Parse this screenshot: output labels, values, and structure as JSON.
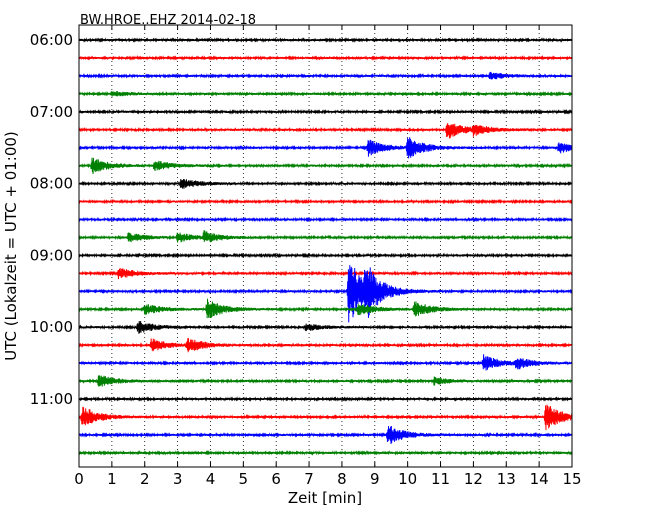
{
  "chart_data": {
    "type": "line",
    "title": "BW.HROE..EHZ 2014-02-18",
    "xlabel": "Zeit  [min]",
    "ylabel": "UTC (Lokalzeit = UTC + 01:00)",
    "xlim": [
      0,
      15
    ],
    "x_ticks": [
      0,
      1,
      2,
      3,
      4,
      5,
      6,
      7,
      8,
      9,
      10,
      11,
      12,
      13,
      14,
      15
    ],
    "y_tick_labels": [
      "06:00",
      "07:00",
      "08:00",
      "09:00",
      "10:00",
      "11:00"
    ],
    "grid": "vertical dotted at each minute",
    "legend": "none",
    "trace_colors": [
      "#000000",
      "#ff0000",
      "#0000ff",
      "#008000"
    ],
    "traces": [
      {
        "start": "06:00",
        "color": "#000000",
        "events": []
      },
      {
        "start": "06:15",
        "color": "#ff0000",
        "events": []
      },
      {
        "start": "06:30",
        "color": "#0000ff",
        "events": [
          {
            "t": 12.5,
            "amp": 0.2
          }
        ]
      },
      {
        "start": "06:45",
        "color": "#008000",
        "events": [
          {
            "t": 1.0,
            "amp": 0.15
          }
        ]
      },
      {
        "start": "07:00",
        "color": "#000000",
        "events": []
      },
      {
        "start": "07:15",
        "color": "#ff0000",
        "events": [
          {
            "t": 11.2,
            "amp": 0.5
          },
          {
            "t": 12.0,
            "amp": 0.25
          }
        ]
      },
      {
        "start": "07:30",
        "color": "#0000ff",
        "events": [
          {
            "t": 8.8,
            "amp": 0.45
          },
          {
            "t": 10.0,
            "amp": 0.6
          },
          {
            "t": 14.6,
            "amp": 0.3
          }
        ]
      },
      {
        "start": "07:45",
        "color": "#008000",
        "events": [
          {
            "t": 0.4,
            "amp": 0.45
          },
          {
            "t": 2.3,
            "amp": 0.3
          }
        ]
      },
      {
        "start": "08:00",
        "color": "#000000",
        "events": [
          {
            "t": 3.1,
            "amp": 0.3
          }
        ]
      },
      {
        "start": "08:15",
        "color": "#ff0000",
        "events": []
      },
      {
        "start": "08:30",
        "color": "#0000ff",
        "events": []
      },
      {
        "start": "08:45",
        "color": "#008000",
        "events": [
          {
            "t": 1.5,
            "amp": 0.25
          },
          {
            "t": 3.0,
            "amp": 0.25
          },
          {
            "t": 3.8,
            "amp": 0.3
          }
        ]
      },
      {
        "start": "09:00",
        "color": "#000000",
        "events": []
      },
      {
        "start": "09:15",
        "color": "#ff0000",
        "events": [
          {
            "t": 1.2,
            "amp": 0.3
          }
        ]
      },
      {
        "start": "09:30",
        "color": "#0000ff",
        "events": [
          {
            "t": 8.2,
            "amp": 1.9
          },
          {
            "t": 8.7,
            "amp": 1.2
          }
        ]
      },
      {
        "start": "09:45",
        "color": "#008000",
        "events": [
          {
            "t": 2.0,
            "amp": 0.3
          },
          {
            "t": 3.9,
            "amp": 0.55
          },
          {
            "t": 8.5,
            "amp": 0.35
          },
          {
            "t": 10.2,
            "amp": 0.45
          }
        ]
      },
      {
        "start": "10:00",
        "color": "#000000",
        "events": [
          {
            "t": 1.8,
            "amp": 0.35
          },
          {
            "t": 6.9,
            "amp": 0.2
          }
        ]
      },
      {
        "start": "10:15",
        "color": "#ff0000",
        "events": [
          {
            "t": 2.2,
            "amp": 0.35
          },
          {
            "t": 3.3,
            "amp": 0.4
          }
        ]
      },
      {
        "start": "10:30",
        "color": "#0000ff",
        "events": [
          {
            "t": 12.3,
            "amp": 0.45
          },
          {
            "t": 13.3,
            "amp": 0.3
          }
        ]
      },
      {
        "start": "10:45",
        "color": "#008000",
        "events": [
          {
            "t": 0.6,
            "amp": 0.35
          },
          {
            "t": 10.8,
            "amp": 0.2
          }
        ]
      },
      {
        "start": "11:00",
        "color": "#000000",
        "events": []
      },
      {
        "start": "11:15",
        "color": "#ff0000",
        "events": [
          {
            "t": 0.1,
            "amp": 0.6
          },
          {
            "t": 14.2,
            "amp": 0.75
          }
        ]
      },
      {
        "start": "11:30",
        "color": "#0000ff",
        "events": [
          {
            "t": 9.4,
            "amp": 0.55
          }
        ]
      },
      {
        "start": "11:45",
        "color": "#008000",
        "events": []
      }
    ]
  }
}
